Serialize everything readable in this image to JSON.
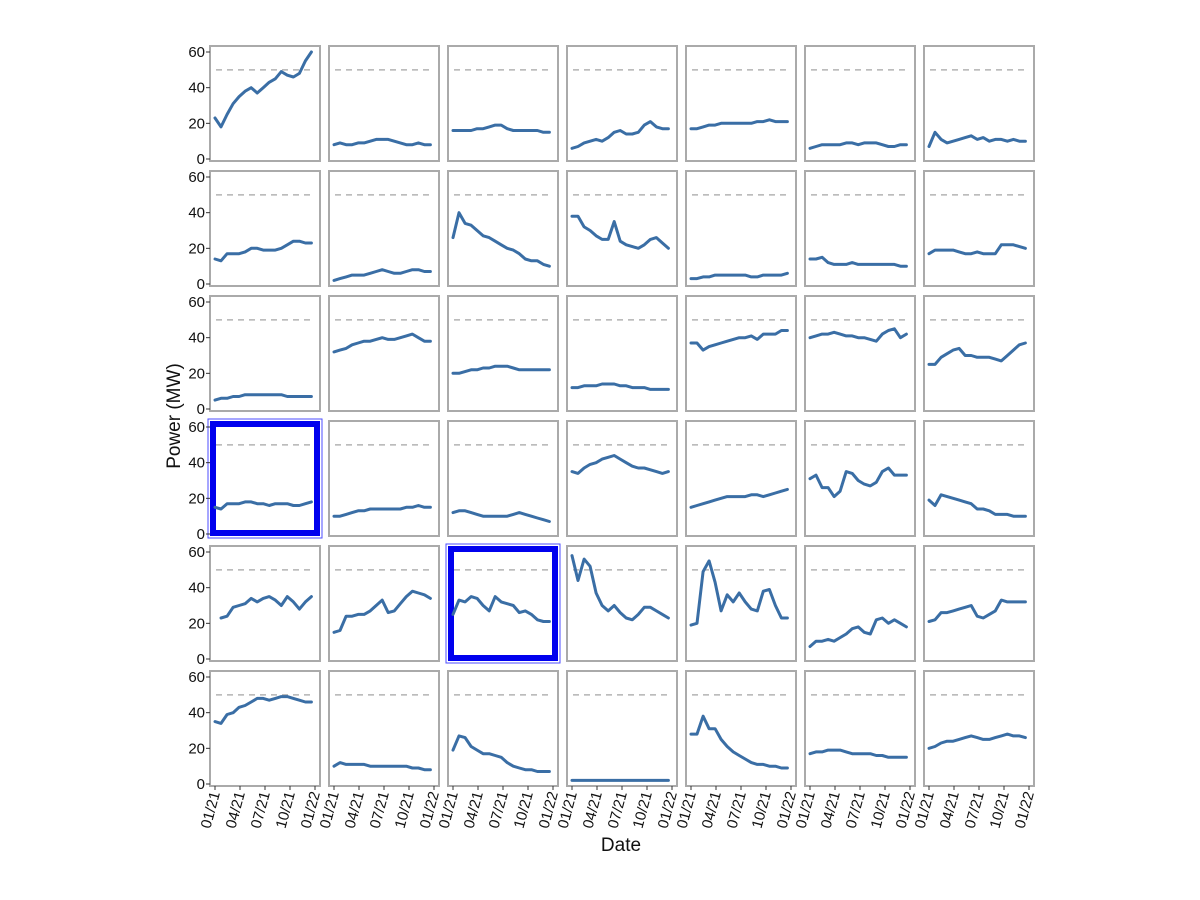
{
  "chart_data": {
    "type": "line",
    "layout": "small-multiples",
    "rows": 6,
    "cols": 7,
    "xlabel": "Date",
    "ylabel": "Power (MW)",
    "x_ticks": [
      "01/21",
      "04/21",
      "07/21",
      "10/21",
      "01/22"
    ],
    "x_range": [
      "2021-01",
      "2022-01"
    ],
    "y_ticks": [
      0,
      20,
      40,
      60
    ],
    "ylim": [
      0,
      62
    ],
    "reference_line": 50,
    "grid": false,
    "colors": {
      "series": "#3a6ea5",
      "reference": "#b3b3b3",
      "frame": "#aaaaaa",
      "highlight": "#0000ee"
    },
    "highlighted_panels": [
      [
        3,
        0
      ],
      [
        4,
        2
      ]
    ],
    "x": [
      "2021-01-01",
      "2021-01-23",
      "2021-02-14",
      "2021-03-08",
      "2021-03-30",
      "2021-04-21",
      "2021-05-13",
      "2021-06-04",
      "2021-06-26",
      "2021-07-18",
      "2021-08-09",
      "2021-08-31",
      "2021-09-22",
      "2021-10-14",
      "2021-11-05",
      "2021-11-27",
      "2021-12-19"
    ],
    "panels": [
      [
        {
          "values": [
            23,
            18,
            25,
            31,
            35,
            38,
            40,
            37,
            40,
            43,
            45,
            49,
            47,
            46,
            48,
            55,
            60
          ]
        },
        {
          "values": [
            8,
            9,
            8,
            8,
            9,
            9,
            10,
            11,
            11,
            11,
            10,
            9,
            8,
            8,
            9,
            8,
            8
          ]
        },
        {
          "values": [
            16,
            16,
            16,
            16,
            17,
            17,
            18,
            19,
            19,
            17,
            16,
            16,
            16,
            16,
            16,
            15,
            15
          ]
        },
        {
          "values": [
            6,
            7,
            9,
            10,
            11,
            10,
            12,
            15,
            16,
            14,
            14,
            15,
            19,
            21,
            18,
            17,
            17
          ]
        },
        {
          "values": [
            17,
            17,
            18,
            19,
            19,
            20,
            20,
            20,
            20,
            20,
            20,
            21,
            21,
            22,
            21,
            21,
            21
          ]
        },
        {
          "values": [
            6,
            7,
            8,
            8,
            8,
            8,
            9,
            9,
            8,
            9,
            9,
            9,
            8,
            7,
            7,
            8,
            8
          ]
        },
        {
          "values": [
            7,
            15,
            11,
            9,
            10,
            11,
            12,
            13,
            11,
            12,
            10,
            11,
            11,
            10,
            11,
            10,
            10
          ]
        }
      ],
      [
        {
          "values": [
            14,
            13,
            17,
            17,
            17,
            18,
            20,
            20,
            19,
            19,
            19,
            20,
            22,
            24,
            24,
            23,
            23
          ]
        },
        {
          "values": [
            2,
            3,
            4,
            5,
            5,
            5,
            6,
            7,
            8,
            7,
            6,
            6,
            7,
            8,
            8,
            7,
            7
          ]
        },
        {
          "values": [
            26,
            40,
            34,
            33,
            30,
            27,
            26,
            24,
            22,
            20,
            19,
            17,
            14,
            13,
            13,
            11,
            10
          ]
        },
        {
          "values": [
            38,
            38,
            32,
            30,
            27,
            25,
            25,
            35,
            24,
            22,
            21,
            20,
            22,
            25,
            26,
            23,
            20
          ]
        },
        {
          "values": [
            3,
            3,
            4,
            4,
            5,
            5,
            5,
            5,
            5,
            5,
            4,
            4,
            5,
            5,
            5,
            5,
            6
          ]
        },
        {
          "values": [
            14,
            14,
            15,
            12,
            11,
            11,
            11,
            12,
            11,
            11,
            11,
            11,
            11,
            11,
            11,
            10,
            10
          ]
        },
        {
          "values": [
            17,
            19,
            19,
            19,
            19,
            18,
            17,
            17,
            18,
            17,
            17,
            17,
            22,
            22,
            22,
            21,
            20
          ]
        }
      ],
      [
        {
          "values": [
            5,
            6,
            6,
            7,
            7,
            8,
            8,
            8,
            8,
            8,
            8,
            8,
            7,
            7,
            7,
            7,
            7
          ]
        },
        {
          "values": [
            32,
            33,
            34,
            36,
            37,
            38,
            38,
            39,
            40,
            39,
            39,
            40,
            41,
            42,
            40,
            38,
            38
          ]
        },
        {
          "values": [
            20,
            20,
            21,
            22,
            22,
            23,
            23,
            24,
            24,
            24,
            23,
            22,
            22,
            22,
            22,
            22,
            22
          ]
        },
        {
          "values": [
            12,
            12,
            13,
            13,
            13,
            14,
            14,
            14,
            13,
            13,
            12,
            12,
            12,
            11,
            11,
            11,
            11
          ]
        },
        {
          "values": [
            37,
            37,
            33,
            35,
            36,
            37,
            38,
            39,
            40,
            40,
            41,
            39,
            42,
            42,
            42,
            44,
            44
          ]
        },
        {
          "values": [
            40,
            41,
            42,
            42,
            43,
            42,
            41,
            41,
            40,
            40,
            39,
            38,
            42,
            44,
            45,
            40,
            42
          ]
        },
        {
          "values": [
            25,
            25,
            29,
            31,
            33,
            34,
            30,
            30,
            29,
            29,
            29,
            28,
            27,
            30,
            33,
            36,
            37
          ]
        }
      ],
      [
        {
          "values": [
            15,
            14,
            17,
            17,
            17,
            18,
            18,
            17,
            17,
            16,
            17,
            17,
            17,
            16,
            16,
            17,
            18
          ]
        },
        {
          "values": [
            10,
            10,
            11,
            12,
            13,
            13,
            14,
            14,
            14,
            14,
            14,
            14,
            15,
            15,
            16,
            15,
            15
          ]
        },
        {
          "values": [
            12,
            13,
            13,
            12,
            11,
            10,
            10,
            10,
            10,
            10,
            11,
            12,
            11,
            10,
            9,
            8,
            7
          ]
        },
        {
          "values": [
            35,
            34,
            37,
            39,
            40,
            42,
            43,
            44,
            42,
            40,
            38,
            37,
            37,
            36,
            35,
            34,
            35
          ]
        },
        {
          "values": [
            15,
            16,
            17,
            18,
            19,
            20,
            21,
            21,
            21,
            21,
            22,
            22,
            21,
            22,
            23,
            24,
            25
          ]
        },
        {
          "values": [
            31,
            33,
            26,
            26,
            21,
            24,
            35,
            34,
            30,
            28,
            27,
            29,
            35,
            37,
            33,
            33,
            33
          ]
        },
        {
          "values": [
            19,
            16,
            22,
            21,
            20,
            19,
            18,
            17,
            14,
            14,
            13,
            11,
            11,
            11,
            10,
            10,
            10
          ]
        }
      ],
      [
        {
          "values": [
            null,
            23,
            24,
            29,
            30,
            31,
            34,
            32,
            34,
            35,
            33,
            30,
            35,
            32,
            28,
            32,
            35
          ]
        },
        {
          "values": [
            15,
            16,
            24,
            24,
            25,
            25,
            27,
            30,
            33,
            26,
            27,
            31,
            35,
            38,
            37,
            36,
            34
          ]
        },
        {
          "values": [
            25,
            33,
            32,
            35,
            34,
            30,
            27,
            35,
            32,
            31,
            30,
            26,
            27,
            25,
            22,
            21,
            21
          ]
        },
        {
          "values": [
            58,
            44,
            56,
            52,
            37,
            30,
            27,
            30,
            26,
            23,
            22,
            25,
            29,
            29,
            27,
            25,
            23
          ]
        },
        {
          "values": [
            19,
            20,
            49,
            55,
            43,
            27,
            36,
            32,
            37,
            32,
            28,
            27,
            38,
            39,
            30,
            23,
            23
          ]
        },
        {
          "values": [
            7,
            10,
            10,
            11,
            10,
            12,
            14,
            17,
            18,
            15,
            14,
            22,
            23,
            20,
            22,
            20,
            18
          ]
        },
        {
          "values": [
            21,
            22,
            26,
            26,
            27,
            28,
            29,
            30,
            24,
            23,
            25,
            27,
            33,
            32,
            32,
            32,
            32
          ]
        }
      ],
      [
        {
          "values": [
            35,
            34,
            39,
            40,
            43,
            44,
            46,
            48,
            48,
            47,
            48,
            49,
            49,
            48,
            47,
            46,
            46
          ]
        },
        {
          "values": [
            10,
            12,
            11,
            11,
            11,
            11,
            10,
            10,
            10,
            10,
            10,
            10,
            10,
            9,
            9,
            8,
            8
          ]
        },
        {
          "values": [
            19,
            27,
            26,
            21,
            19,
            17,
            17,
            16,
            15,
            12,
            10,
            9,
            8,
            8,
            7,
            7,
            7
          ]
        },
        {
          "values": [
            2,
            2,
            2,
            2,
            2,
            2,
            2,
            2,
            2,
            2,
            2,
            2,
            2,
            2,
            2,
            2,
            2
          ]
        },
        {
          "values": [
            28,
            28,
            38,
            31,
            31,
            25,
            21,
            18,
            16,
            14,
            12,
            11,
            11,
            10,
            10,
            9,
            9
          ]
        },
        {
          "values": [
            17,
            18,
            18,
            19,
            19,
            19,
            18,
            17,
            17,
            17,
            17,
            16,
            16,
            15,
            15,
            15,
            15
          ]
        },
        {
          "values": [
            20,
            21,
            23,
            24,
            24,
            25,
            26,
            27,
            26,
            25,
            25,
            26,
            27,
            28,
            27,
            27,
            26
          ]
        }
      ]
    ]
  }
}
